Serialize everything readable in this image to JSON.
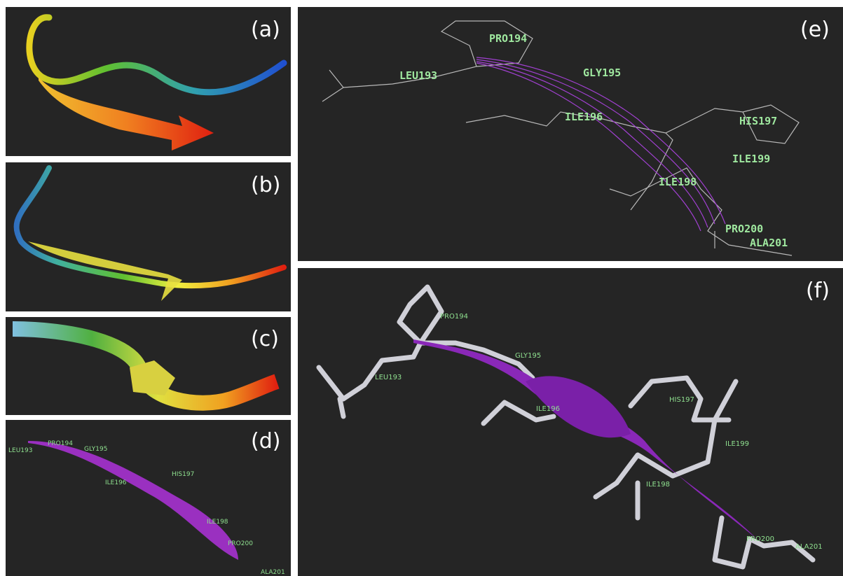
{
  "panels": {
    "a": {
      "label": "(a)"
    },
    "b": {
      "label": "(b)"
    },
    "c": {
      "label": "(c)"
    },
    "d": {
      "label": "(d)",
      "residues": [
        "LEU193",
        "PRO194",
        "GLY195",
        "ILE196",
        "HIS197",
        "ILE198",
        "PRO200",
        "ALA201"
      ]
    },
    "e": {
      "label": "(e)",
      "residues": [
        "PRO194",
        "LEU193",
        "GLY195",
        "ILE196",
        "HIS197",
        "ILE199",
        "ILE198",
        "PRO200",
        "ALA201"
      ]
    },
    "f": {
      "label": "(f)",
      "residues": [
        "PRO194",
        "LEU193",
        "GLY195",
        "ILE196",
        "HIS197",
        "ILE199",
        "ILE198",
        "PRO200",
        "ALA201"
      ]
    }
  }
}
